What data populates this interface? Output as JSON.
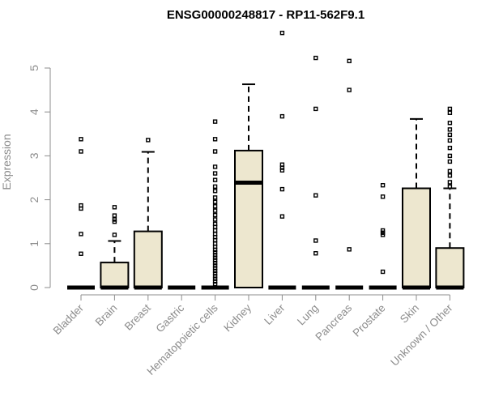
{
  "chart_data": {
    "type": "boxplot",
    "title": "ENSG00000248817 - RP11-562F9.1",
    "ylabel": "Expression",
    "xlabel": "",
    "ylim": [
      0,
      5.9
    ],
    "yticks": [
      0,
      1,
      2,
      3,
      4,
      5
    ],
    "box_color": "#ede7cf",
    "axis_color": "#8c8c8c",
    "categories": [
      "Bladder",
      "Brain",
      "Breast",
      "Gastric",
      "Hematopoietic cells",
      "Kidney",
      "Liver",
      "Lung",
      "Pancreas",
      "Prostate",
      "Skin",
      "Unknown / Other"
    ],
    "boxes": [
      {
        "q1": 0,
        "median": 0,
        "q3": 0,
        "whisker_low": 0,
        "whisker_high": 0,
        "outliers": [
          3.38,
          3.1,
          1.87,
          1.8,
          1.22,
          0.77
        ]
      },
      {
        "q1": 0,
        "median": 0,
        "q3": 0.57,
        "whisker_low": 0,
        "whisker_high": 1.06,
        "outliers": [
          1.83,
          1.64,
          1.55,
          1.5,
          1.2
        ]
      },
      {
        "q1": 0,
        "median": 0,
        "q3": 1.28,
        "whisker_low": 0,
        "whisker_high": 3.09,
        "outliers": [
          3.36
        ]
      },
      {
        "q1": 0,
        "median": 0,
        "q3": 0,
        "whisker_low": 0,
        "whisker_high": 0,
        "outliers": []
      },
      {
        "q1": 0,
        "median": 0,
        "q3": 0,
        "whisker_low": 0,
        "whisker_high": 0,
        "outliers": [
          3.78,
          3.38,
          3.1,
          2.75,
          2.6,
          2.45,
          2.3,
          2.2,
          2.05,
          1.95,
          1.85,
          1.75,
          1.65,
          1.55,
          1.45,
          1.38,
          1.3,
          1.22,
          1.15,
          1.08,
          1.0,
          0.93,
          0.86,
          0.8,
          0.74,
          0.68,
          0.62,
          0.56,
          0.5,
          0.44,
          0.38,
          0.32,
          0.26,
          0.2,
          0.14,
          0.08
        ]
      },
      {
        "q1": 0,
        "median": 2.39,
        "q3": 3.12,
        "whisker_low": 0,
        "whisker_high": 4.63,
        "outliers": []
      },
      {
        "q1": 0,
        "median": 0,
        "q3": 0,
        "whisker_low": 0,
        "whisker_high": 0,
        "outliers": [
          5.8,
          3.9,
          2.8,
          2.73,
          2.67,
          2.24,
          1.62
        ]
      },
      {
        "q1": 0,
        "median": 0,
        "q3": 0,
        "whisker_low": 0,
        "whisker_high": 0,
        "outliers": [
          5.23,
          4.07,
          2.1,
          1.07,
          0.78
        ]
      },
      {
        "q1": 0,
        "median": 0,
        "q3": 0,
        "whisker_low": 0,
        "whisker_high": 0,
        "outliers": [
          5.16,
          4.5,
          0.87
        ]
      },
      {
        "q1": 0,
        "median": 0,
        "q3": 0,
        "whisker_low": 0,
        "whisker_high": 0,
        "outliers": [
          2.33,
          2.07,
          1.3,
          1.25,
          1.2,
          0.36
        ]
      },
      {
        "q1": 0,
        "median": 0,
        "q3": 2.26,
        "whisker_low": 0,
        "whisker_high": 3.84,
        "outliers": []
      },
      {
        "q1": 0,
        "median": 0,
        "q3": 0.9,
        "whisker_low": 0,
        "whisker_high": 2.26,
        "outliers": [
          4.07,
          3.98,
          3.75,
          3.6,
          3.48,
          3.35,
          3.18,
          3.0,
          2.87,
          2.65,
          2.55,
          2.4,
          2.3
        ]
      }
    ]
  }
}
